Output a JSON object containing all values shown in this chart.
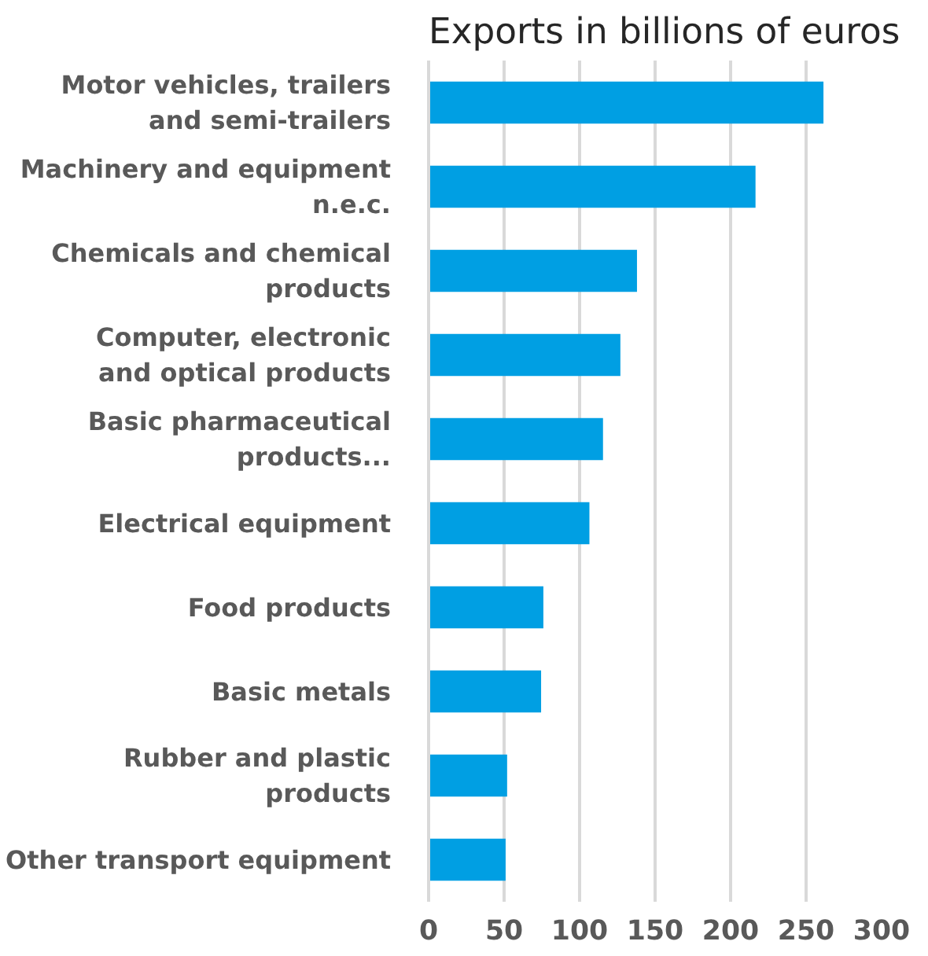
{
  "chart_data": {
    "type": "bar",
    "orientation": "horizontal",
    "title": "Exports in billions of euros",
    "categories": [
      "Motor vehicles, trailers\nand semi-trailers",
      "Machinery and equipment\nn.e.c.",
      "Chemicals and chemical\nproducts",
      "Computer, electronic\nand optical products",
      "Basic pharmaceutical\nproducts...",
      "Electrical equipment",
      "Food products",
      "Basic metals",
      "Rubber and plastic\nproducts",
      "Other transport equipment"
    ],
    "values": [
      261.5,
      216.5,
      138,
      127,
      115.5,
      106.5,
      76,
      74.5,
      52,
      51
    ],
    "color": "#009fe3",
    "xlim": [
      0,
      300
    ],
    "xticks": [
      0,
      50,
      100,
      150,
      200,
      250,
      300
    ],
    "grid": "x"
  }
}
